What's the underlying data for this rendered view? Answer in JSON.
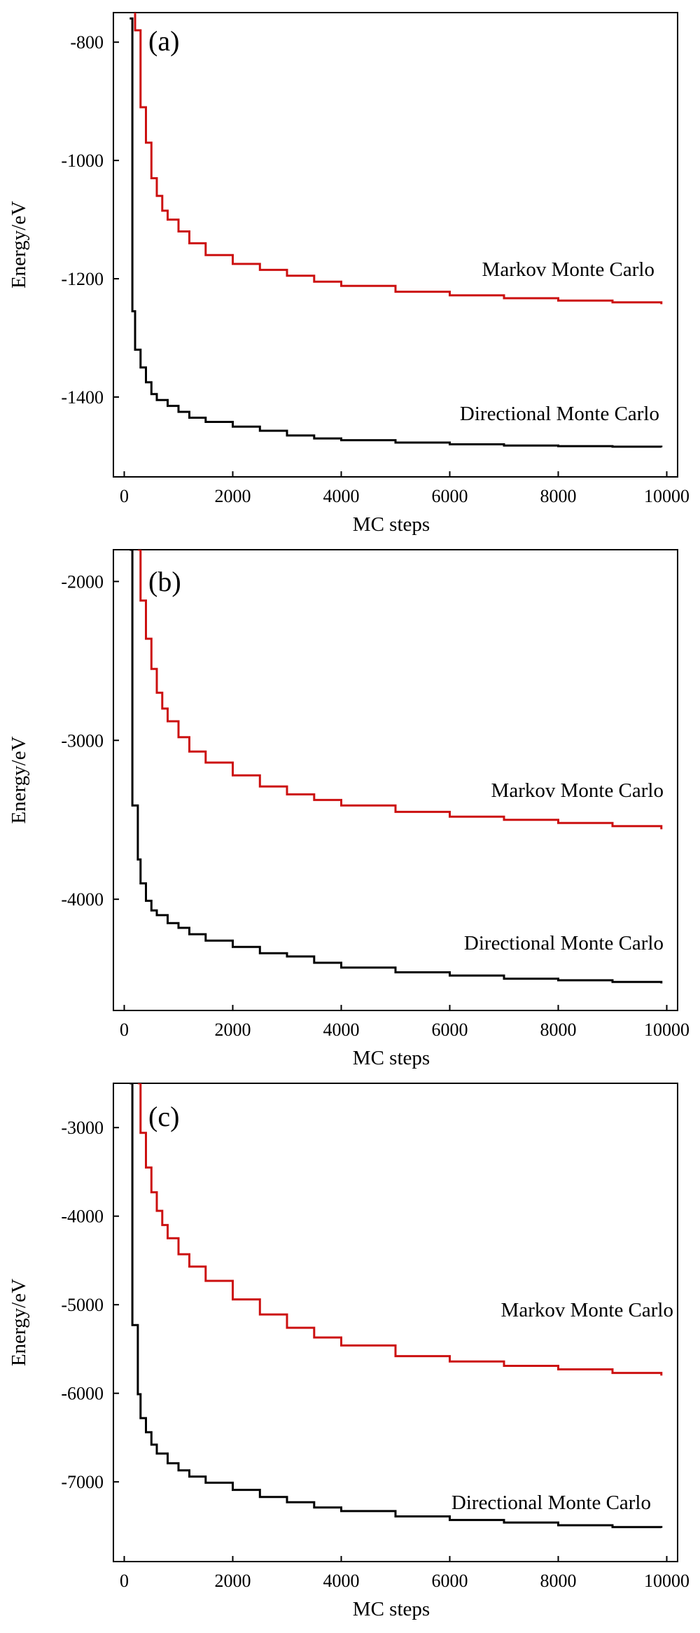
{
  "chart_data": [
    {
      "type": "line",
      "panel_label": "(a)",
      "xlabel": "MC steps",
      "ylabel": "Energy/eV",
      "xlim": [
        -200,
        10200
      ],
      "ylim": [
        -1535,
        -750
      ],
      "xticks": [
        0,
        2000,
        4000,
        6000,
        8000,
        10000
      ],
      "xtick_labels": [
        "0",
        "2000",
        "4000",
        "6000",
        "8000",
        "10000"
      ],
      "yticks": [
        -800,
        -1000,
        -1200,
        -1400
      ],
      "ytick_labels": [
        "-800",
        "-1000",
        "-1200",
        "-1400"
      ],
      "grid": false,
      "series": [
        {
          "name": "Markov Monte Carlo",
          "color": "#cc1010",
          "x": [
            100,
            200,
            300,
            400,
            500,
            600,
            700,
            800,
            1000,
            1200,
            1500,
            2000,
            2500,
            3000,
            3500,
            4000,
            5000,
            6000,
            7000,
            8000,
            9000,
            9900
          ],
          "y": [
            -730,
            -780,
            -910,
            -970,
            -1030,
            -1060,
            -1085,
            -1100,
            -1120,
            -1140,
            -1160,
            -1175,
            -1185,
            -1195,
            -1205,
            -1212,
            -1222,
            -1228,
            -1233,
            -1237,
            -1240,
            -1243
          ]
        },
        {
          "name": "Directional Monte Carlo",
          "color": "#000000",
          "x": [
            100,
            150,
            200,
            300,
            400,
            500,
            600,
            800,
            1000,
            1200,
            1500,
            2000,
            2500,
            3000,
            3500,
            4000,
            5000,
            6000,
            7000,
            8000,
            9000,
            9900
          ],
          "y": [
            -760,
            -1255,
            -1320,
            -1350,
            -1375,
            -1395,
            -1405,
            -1415,
            -1425,
            -1435,
            -1442,
            -1450,
            -1457,
            -1465,
            -1470,
            -1473,
            -1477,
            -1480,
            -1482,
            -1483,
            -1484,
            -1485
          ]
        }
      ]
    },
    {
      "type": "line",
      "panel_label": "(b)",
      "xlabel": "MC steps",
      "ylabel": "Energy/eV",
      "xlim": [
        -200,
        10200
      ],
      "ylim": [
        -4700,
        -1800
      ],
      "xticks": [
        0,
        2000,
        4000,
        6000,
        8000,
        10000
      ],
      "xtick_labels": [
        "0",
        "2000",
        "4000",
        "6000",
        "8000",
        "10000"
      ],
      "yticks": [
        -2000,
        -3000,
        -4000
      ],
      "ytick_labels": [
        "-2000",
        "-3000",
        "-4000"
      ],
      "grid": false,
      "series": [
        {
          "name": "Markov Monte Carlo",
          "color": "#cc1010",
          "x": [
            250,
            300,
            400,
            500,
            600,
            700,
            800,
            1000,
            1200,
            1500,
            2000,
            2500,
            3000,
            3500,
            4000,
            5000,
            6000,
            7000,
            8000,
            9000,
            9900
          ],
          "y": [
            -1800,
            -2120,
            -2360,
            -2550,
            -2700,
            -2800,
            -2880,
            -2980,
            -3070,
            -3140,
            -3220,
            -3290,
            -3340,
            -3375,
            -3410,
            -3450,
            -3480,
            -3500,
            -3520,
            -3540,
            -3560
          ]
        },
        {
          "name": "Directional Monte Carlo",
          "color": "#000000",
          "x": [
            100,
            150,
            250,
            300,
            400,
            500,
            600,
            800,
            1000,
            1200,
            1500,
            2000,
            2500,
            3000,
            3500,
            4000,
            5000,
            6000,
            7000,
            8000,
            9000,
            9900
          ],
          "y": [
            -1800,
            -3410,
            -3750,
            -3900,
            -4010,
            -4070,
            -4100,
            -4150,
            -4180,
            -4220,
            -4260,
            -4300,
            -4340,
            -4360,
            -4400,
            -4430,
            -4460,
            -4480,
            -4500,
            -4510,
            -4520,
            -4530
          ]
        }
      ]
    },
    {
      "type": "line",
      "panel_label": "(c)",
      "xlabel": "MC steps",
      "ylabel": "Energy/eV",
      "xlim": [
        -200,
        10200
      ],
      "ylim": [
        -7900,
        -2500
      ],
      "xticks": [
        0,
        2000,
        4000,
        6000,
        8000,
        10000
      ],
      "xtick_labels": [
        "0",
        "2000",
        "4000",
        "6000",
        "8000",
        "10000"
      ],
      "yticks": [
        -3000,
        -4000,
        -5000,
        -6000,
        -7000
      ],
      "ytick_labels": [
        "-3000",
        "-4000",
        "-5000",
        "-6000",
        "-7000"
      ],
      "grid": false,
      "series": [
        {
          "name": "Markov Monte Carlo",
          "color": "#cc1010",
          "x": [
            250,
            300,
            400,
            500,
            600,
            700,
            800,
            1000,
            1200,
            1500,
            2000,
            2500,
            3000,
            3500,
            4000,
            5000,
            6000,
            7000,
            8000,
            9000,
            9900
          ],
          "y": [
            -2500,
            -3060,
            -3450,
            -3730,
            -3940,
            -4100,
            -4250,
            -4430,
            -4570,
            -4730,
            -4940,
            -5110,
            -5260,
            -5370,
            -5460,
            -5580,
            -5640,
            -5690,
            -5730,
            -5770,
            -5800
          ]
        },
        {
          "name": "Directional Monte Carlo",
          "color": "#000000",
          "x": [
            100,
            150,
            250,
            300,
            400,
            500,
            600,
            800,
            1000,
            1200,
            1500,
            2000,
            2500,
            3000,
            3500,
            4000,
            5000,
            6000,
            7000,
            8000,
            9000,
            9900
          ],
          "y": [
            -2500,
            -5230,
            -6010,
            -6280,
            -6440,
            -6580,
            -6680,
            -6790,
            -6870,
            -6940,
            -7010,
            -7090,
            -7170,
            -7230,
            -7290,
            -7330,
            -7390,
            -7430,
            -7460,
            -7490,
            -7510,
            -7520
          ]
        }
      ]
    }
  ]
}
